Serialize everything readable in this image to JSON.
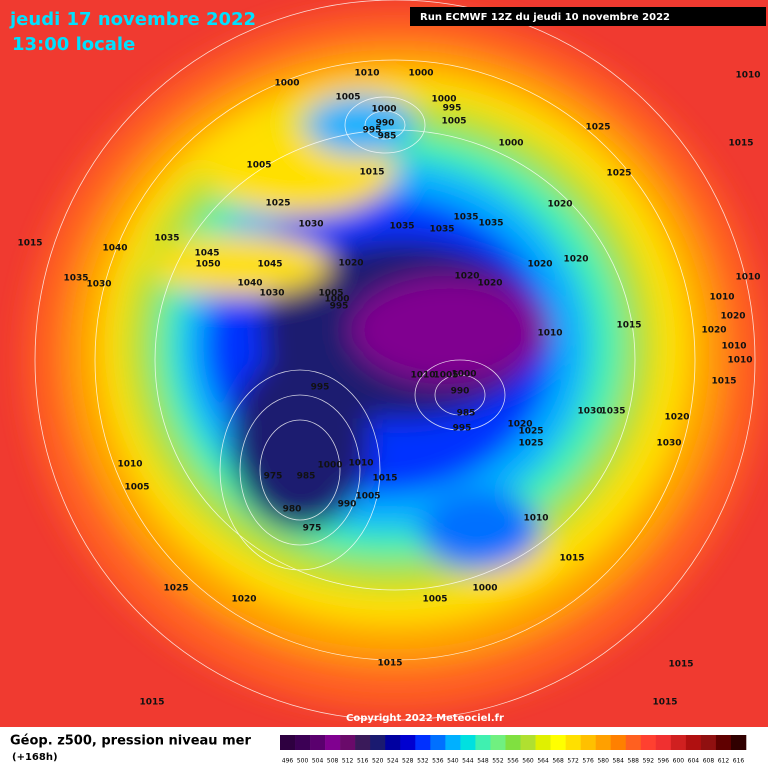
{
  "header": {
    "date": "jeudi 17 novembre 2022",
    "time": "13:00 locale",
    "run": "Run ECMWF 12Z du jeudi 10 novembre 2022"
  },
  "copyright": "Copyright 2022 Meteociel.fr",
  "legend": {
    "title": "Géop. z500, pression niveau mer",
    "lead": "(+168h)",
    "labels": [
      496,
      500,
      504,
      508,
      512,
      516,
      520,
      524,
      528,
      532,
      536,
      540,
      544,
      548,
      552,
      556,
      560,
      564,
      568,
      572,
      576,
      580,
      584,
      588,
      592,
      596,
      600,
      604,
      608,
      612,
      616
    ],
    "colors": [
      "#2e0040",
      "#3c0055",
      "#5a006e",
      "#800090",
      "#6a0a6a",
      "#3a1a5a",
      "#1a1a70",
      "#0000a0",
      "#0000d0",
      "#0030ff",
      "#0070ff",
      "#00b0ff",
      "#00e0e0",
      "#40f0b0",
      "#70f080",
      "#80e040",
      "#b0e030",
      "#e0f000",
      "#ffff00",
      "#ffe000",
      "#ffc000",
      "#ffa000",
      "#ff8000",
      "#ff6020",
      "#ff4030",
      "#f03030",
      "#d02020",
      "#b01010",
      "#901010",
      "#600000",
      "#300000"
    ]
  },
  "map": {
    "pressure_labels": [
      "1010",
      "1000",
      "1000",
      "1005",
      "1000",
      "1000",
      "995",
      "1005",
      "990",
      "995",
      "985",
      "1000",
      "1010",
      "1025",
      "1015",
      "1005",
      "1015",
      "1025",
      "1025",
      "1030",
      "1035",
      "1035",
      "1035",
      "1035",
      "1020",
      "1015",
      "1035",
      "1040",
      "1045",
      "1050",
      "1045",
      "1035",
      "1030",
      "1040",
      "1030",
      "1020",
      "1020",
      "1020",
      "1020",
      "1020",
      "1010",
      "1005",
      "1000",
      "995",
      "1010",
      "1020",
      "1015",
      "1020",
      "1010",
      "1010",
      "1010",
      "1010",
      "1005",
      "1000",
      "990",
      "995",
      "1015",
      "985",
      "1030",
      "1035",
      "1020",
      "995",
      "1020",
      "1025",
      "1025",
      "1030",
      "1000",
      "1010",
      "1010",
      "975",
      "985",
      "1015",
      "1005",
      "1005",
      "990",
      "980",
      "975",
      "1010",
      "1015",
      "1025",
      "1000",
      "1020",
      "1005",
      "1015",
      "1015",
      "1015",
      "1015"
    ]
  }
}
